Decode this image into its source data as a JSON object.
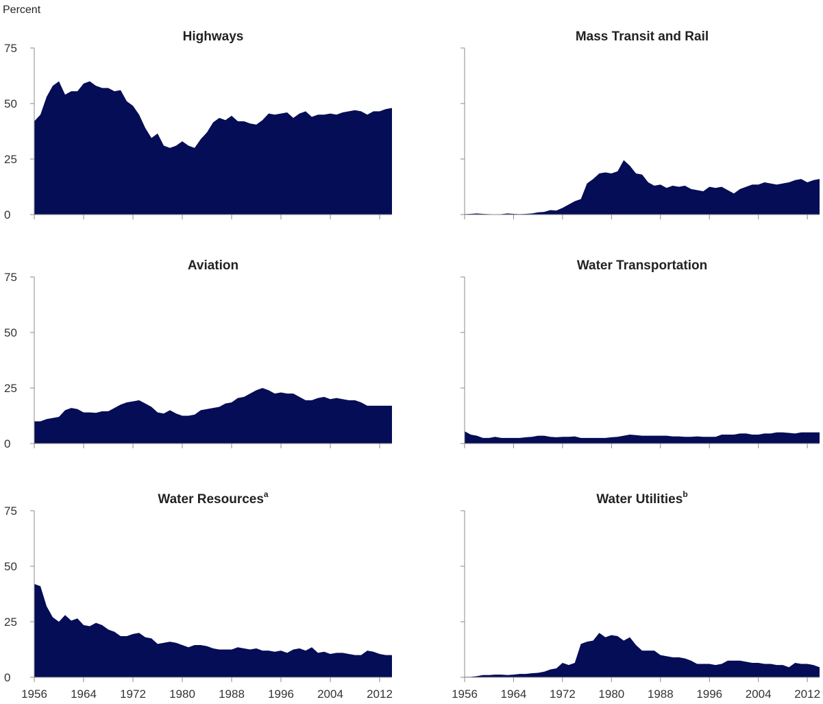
{
  "unit_label": "Percent",
  "colors": {
    "area_fill": "#040d55",
    "axis": "#8a8a8a",
    "text": "#222222"
  },
  "chart_data": [
    {
      "type": "area",
      "title": "Highways",
      "title_sup": "",
      "xlim": [
        1956,
        2014
      ],
      "ylim": [
        0,
        75
      ],
      "yticks": [
        0,
        25,
        50,
        75
      ],
      "xticks": [
        1956,
        1964,
        1972,
        1980,
        1988,
        1996,
        2004,
        2012
      ],
      "show_y_tick_labels": true,
      "show_x_tick_labels": false,
      "x": [
        1956,
        1957,
        1958,
        1959,
        1960,
        1961,
        1962,
        1963,
        1964,
        1965,
        1966,
        1967,
        1968,
        1969,
        1970,
        1971,
        1972,
        1973,
        1974,
        1975,
        1976,
        1977,
        1978,
        1979,
        1980,
        1981,
        1982,
        1983,
        1984,
        1985,
        1986,
        1987,
        1988,
        1989,
        1990,
        1991,
        1992,
        1993,
        1994,
        1995,
        1996,
        1997,
        1998,
        1999,
        2000,
        2001,
        2002,
        2003,
        2004,
        2005,
        2006,
        2007,
        2008,
        2009,
        2010,
        2011,
        2012,
        2013,
        2014
      ],
      "values": [
        42,
        45,
        53,
        58,
        60,
        54,
        55.5,
        55.5,
        59,
        60,
        58,
        57,
        57,
        55.5,
        56,
        51,
        49,
        45,
        39,
        34.5,
        36.5,
        31,
        30,
        31,
        33,
        31,
        30,
        34,
        37,
        41.5,
        43.5,
        42.5,
        44.5,
        42,
        42,
        41,
        40.5,
        42.5,
        45.5,
        45,
        45.5,
        46,
        43.5,
        45.5,
        46.5,
        44,
        45,
        45,
        45.5,
        45,
        46,
        46.5,
        47,
        46.5,
        45,
        46.5,
        46.5,
        47.5,
        48
      ]
    },
    {
      "type": "area",
      "title": "Mass Transit and Rail",
      "title_sup": "",
      "xlim": [
        1956,
        2014
      ],
      "ylim": [
        0,
        75
      ],
      "yticks": [
        0,
        25,
        50,
        75
      ],
      "xticks": [
        1956,
        1964,
        1972,
        1980,
        1988,
        1996,
        2004,
        2012
      ],
      "show_y_tick_labels": false,
      "show_x_tick_labels": false,
      "x": [
        1956,
        1957,
        1958,
        1959,
        1960,
        1961,
        1962,
        1963,
        1964,
        1965,
        1966,
        1967,
        1968,
        1969,
        1970,
        1971,
        1972,
        1973,
        1974,
        1975,
        1976,
        1977,
        1978,
        1979,
        1980,
        1981,
        1982,
        1983,
        1984,
        1985,
        1986,
        1987,
        1988,
        1989,
        1990,
        1991,
        1992,
        1993,
        1994,
        1995,
        1996,
        1997,
        1998,
        1999,
        2000,
        2001,
        2002,
        2003,
        2004,
        2005,
        2006,
        2007,
        2008,
        2009,
        2010,
        2011,
        2012,
        2013,
        2014
      ],
      "values": [
        0.2,
        0.3,
        0.5,
        0.3,
        0.2,
        0.1,
        0.2,
        0.5,
        0.3,
        0.2,
        0.3,
        0.5,
        1,
        1.2,
        2,
        1.8,
        3,
        4.5,
        6,
        7,
        14,
        16,
        18.5,
        19,
        18.5,
        19.5,
        24.5,
        22,
        18.5,
        18,
        14.5,
        13,
        13.5,
        12,
        13,
        12.5,
        13,
        11.5,
        11,
        10.5,
        12.5,
        12,
        12.5,
        11,
        9.5,
        11.5,
        12.5,
        13.5,
        13.5,
        14.5,
        14,
        13.5,
        14,
        14.5,
        15.5,
        16,
        14.5,
        15.5,
        16
      ]
    },
    {
      "type": "area",
      "title": "Aviation",
      "title_sup": "",
      "xlim": [
        1956,
        2014
      ],
      "ylim": [
        0,
        75
      ],
      "yticks": [
        0,
        25,
        50,
        75
      ],
      "xticks": [
        1956,
        1964,
        1972,
        1980,
        1988,
        1996,
        2004,
        2012
      ],
      "show_y_tick_labels": true,
      "show_x_tick_labels": false,
      "x": [
        1956,
        1957,
        1958,
        1959,
        1960,
        1961,
        1962,
        1963,
        1964,
        1965,
        1966,
        1967,
        1968,
        1969,
        1970,
        1971,
        1972,
        1973,
        1974,
        1975,
        1976,
        1977,
        1978,
        1979,
        1980,
        1981,
        1982,
        1983,
        1984,
        1985,
        1986,
        1987,
        1988,
        1989,
        1990,
        1991,
        1992,
        1993,
        1994,
        1995,
        1996,
        1997,
        1998,
        1999,
        2000,
        2001,
        2002,
        2003,
        2004,
        2005,
        2006,
        2007,
        2008,
        2009,
        2010,
        2011,
        2012,
        2013,
        2014
      ],
      "values": [
        10,
        10,
        11,
        11.5,
        12,
        15,
        16,
        15.5,
        14,
        14,
        13.8,
        14.5,
        14.5,
        16,
        17.5,
        18.5,
        19,
        19.5,
        18,
        16.5,
        14,
        13.5,
        15,
        13.5,
        12.5,
        12.5,
        13,
        15,
        15.5,
        16,
        16.5,
        18,
        18.5,
        20.5,
        21,
        22.5,
        24,
        25,
        24,
        22.5,
        23,
        22.5,
        22.5,
        21,
        19.5,
        19.5,
        20.5,
        21,
        20,
        20.5,
        20,
        19.5,
        19.5,
        18.5,
        17,
        17,
        17,
        17,
        17
      ]
    },
    {
      "type": "area",
      "title": "Water Transportation",
      "title_sup": "",
      "xlim": [
        1956,
        2014
      ],
      "ylim": [
        0,
        75
      ],
      "yticks": [
        0,
        25,
        50,
        75
      ],
      "xticks": [
        1956,
        1964,
        1972,
        1980,
        1988,
        1996,
        2004,
        2012
      ],
      "show_y_tick_labels": false,
      "show_x_tick_labels": false,
      "x": [
        1956,
        1957,
        1958,
        1959,
        1960,
        1961,
        1962,
        1963,
        1964,
        1965,
        1966,
        1967,
        1968,
        1969,
        1970,
        1971,
        1972,
        1973,
        1974,
        1975,
        1976,
        1977,
        1978,
        1979,
        1980,
        1981,
        1982,
        1983,
        1984,
        1985,
        1986,
        1987,
        1988,
        1989,
        1990,
        1991,
        1992,
        1993,
        1994,
        1995,
        1996,
        1997,
        1998,
        1999,
        2000,
        2001,
        2002,
        2003,
        2004,
        2005,
        2006,
        2007,
        2008,
        2009,
        2010,
        2011,
        2012,
        2013,
        2014
      ],
      "values": [
        5.5,
        4,
        3.5,
        2.5,
        2.5,
        3,
        2.5,
        2.5,
        2.5,
        2.5,
        2.8,
        3,
        3.5,
        3.5,
        3,
        2.8,
        3,
        3,
        3.2,
        2.5,
        2.5,
        2.5,
        2.5,
        2.5,
        2.8,
        3,
        3.5,
        4,
        3.8,
        3.5,
        3.5,
        3.5,
        3.5,
        3.5,
        3.2,
        3.2,
        3,
        3,
        3.2,
        3,
        3,
        3,
        4,
        4,
        4,
        4.5,
        4.5,
        4,
        4,
        4.5,
        4.5,
        5,
        5,
        4.8,
        4.5,
        5,
        5,
        5,
        5
      ]
    },
    {
      "type": "area",
      "title": "Water Resources",
      "title_sup": "a",
      "xlim": [
        1956,
        2014
      ],
      "ylim": [
        0,
        75
      ],
      "yticks": [
        0,
        25,
        50,
        75
      ],
      "xticks": [
        1956,
        1964,
        1972,
        1980,
        1988,
        1996,
        2004,
        2012
      ],
      "show_y_tick_labels": true,
      "show_x_tick_labels": true,
      "x": [
        1956,
        1957,
        1958,
        1959,
        1960,
        1961,
        1962,
        1963,
        1964,
        1965,
        1966,
        1967,
        1968,
        1969,
        1970,
        1971,
        1972,
        1973,
        1974,
        1975,
        1976,
        1977,
        1978,
        1979,
        1980,
        1981,
        1982,
        1983,
        1984,
        1985,
        1986,
        1987,
        1988,
        1989,
        1990,
        1991,
        1992,
        1993,
        1994,
        1995,
        1996,
        1997,
        1998,
        1999,
        2000,
        2001,
        2002,
        2003,
        2004,
        2005,
        2006,
        2007,
        2008,
        2009,
        2010,
        2011,
        2012,
        2013,
        2014
      ],
      "values": [
        42,
        41,
        32,
        27,
        25,
        28,
        25.5,
        26.5,
        23.5,
        23,
        24.5,
        23.5,
        21.5,
        20.5,
        18.5,
        18.5,
        19.5,
        20,
        18,
        17.5,
        15,
        15.5,
        16,
        15.5,
        14.5,
        13.5,
        14.5,
        14.5,
        14,
        13,
        12.5,
        12.5,
        12.5,
        13.5,
        13,
        12.5,
        13,
        12,
        12,
        11.5,
        12,
        11,
        12.5,
        13,
        12,
        13.5,
        11,
        11.5,
        10.5,
        11,
        11,
        10.5,
        10,
        10,
        12,
        11.5,
        10.5,
        10,
        10
      ]
    },
    {
      "type": "area",
      "title": "Water Utilities",
      "title_sup": "b",
      "xlim": [
        1956,
        2014
      ],
      "ylim": [
        0,
        75
      ],
      "yticks": [
        0,
        25,
        50,
        75
      ],
      "xticks": [
        1956,
        1964,
        1972,
        1980,
        1988,
        1996,
        2004,
        2012
      ],
      "show_y_tick_labels": false,
      "show_x_tick_labels": true,
      "x": [
        1956,
        1957,
        1958,
        1959,
        1960,
        1961,
        1962,
        1963,
        1964,
        1965,
        1966,
        1967,
        1968,
        1969,
        1970,
        1971,
        1972,
        1973,
        1974,
        1975,
        1976,
        1977,
        1978,
        1979,
        1980,
        1981,
        1982,
        1983,
        1984,
        1985,
        1986,
        1987,
        1988,
        1989,
        1990,
        1991,
        1992,
        1993,
        1994,
        1995,
        1996,
        1997,
        1998,
        1999,
        2000,
        2001,
        2002,
        2003,
        2004,
        2005,
        2006,
        2007,
        2008,
        2009,
        2010,
        2011,
        2012,
        2013,
        2014
      ],
      "values": [
        0.2,
        0.2,
        0.5,
        1,
        1,
        1.2,
        1.2,
        1,
        1.2,
        1.5,
        1.5,
        1.8,
        2,
        2.5,
        3.5,
        4,
        6.5,
        5.5,
        6.5,
        15,
        16,
        16.5,
        20,
        18,
        19,
        18.5,
        16.5,
        18,
        14.5,
        12,
        12,
        12,
        10,
        9.5,
        9,
        9,
        8.5,
        7.5,
        6,
        6,
        6,
        5.5,
        6,
        7.5,
        7.5,
        7.5,
        7,
        6.5,
        6.5,
        6,
        6,
        5.5,
        5.5,
        4.5,
        6.5,
        6,
        6,
        5.5,
        4.5
      ]
    }
  ]
}
